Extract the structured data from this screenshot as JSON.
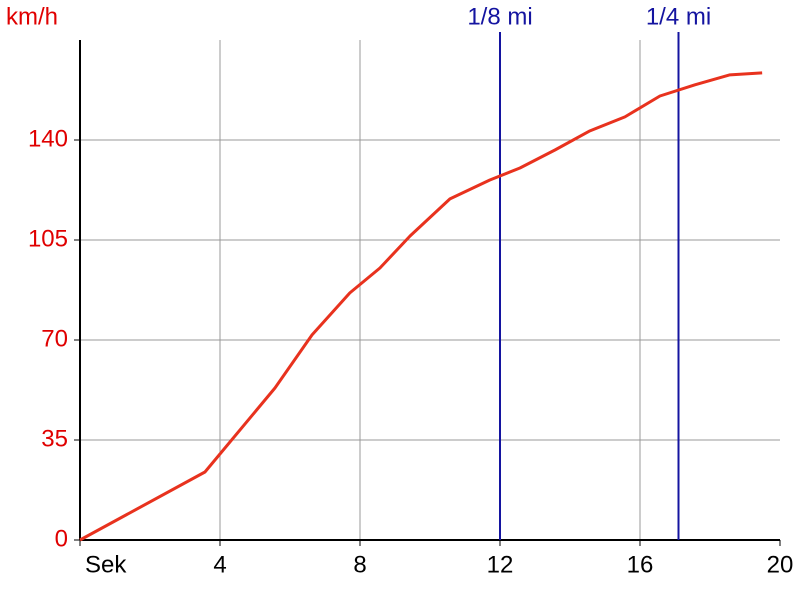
{
  "chart_data": {
    "type": "line",
    "y_label": "km/h",
    "x": [
      0,
      3.57,
      5.57,
      6.63,
      7.71,
      8.57,
      9.43,
      10.57,
      11.71,
      12.57,
      13.57,
      14.57,
      15.57,
      16.57,
      17.57,
      18.57,
      19.49
    ],
    "series": [
      {
        "color": "#e8321e",
        "values": [
          0,
          23.8,
          53.2,
          71.8,
          86.5,
          95.2,
          106.4,
          119.4,
          126,
          130.2,
          136.5,
          143.2,
          148.1,
          155.4,
          159.3,
          162.8,
          163.5
        ]
      }
    ],
    "xlim": [
      0,
      20
    ],
    "xticks": [
      {
        "value": 0,
        "label": "Sek"
      },
      4,
      8,
      12,
      16,
      20
    ],
    "ylim": [
      0,
      175
    ],
    "yticks": [
      0,
      35,
      70,
      105,
      140
    ],
    "grid": true,
    "markers": [
      {
        "label": "1/8 mi",
        "x": 12,
        "color": "#1414a0"
      },
      {
        "label": "1/4 mi",
        "x": 17.1,
        "color": "#1414a0"
      }
    ]
  }
}
